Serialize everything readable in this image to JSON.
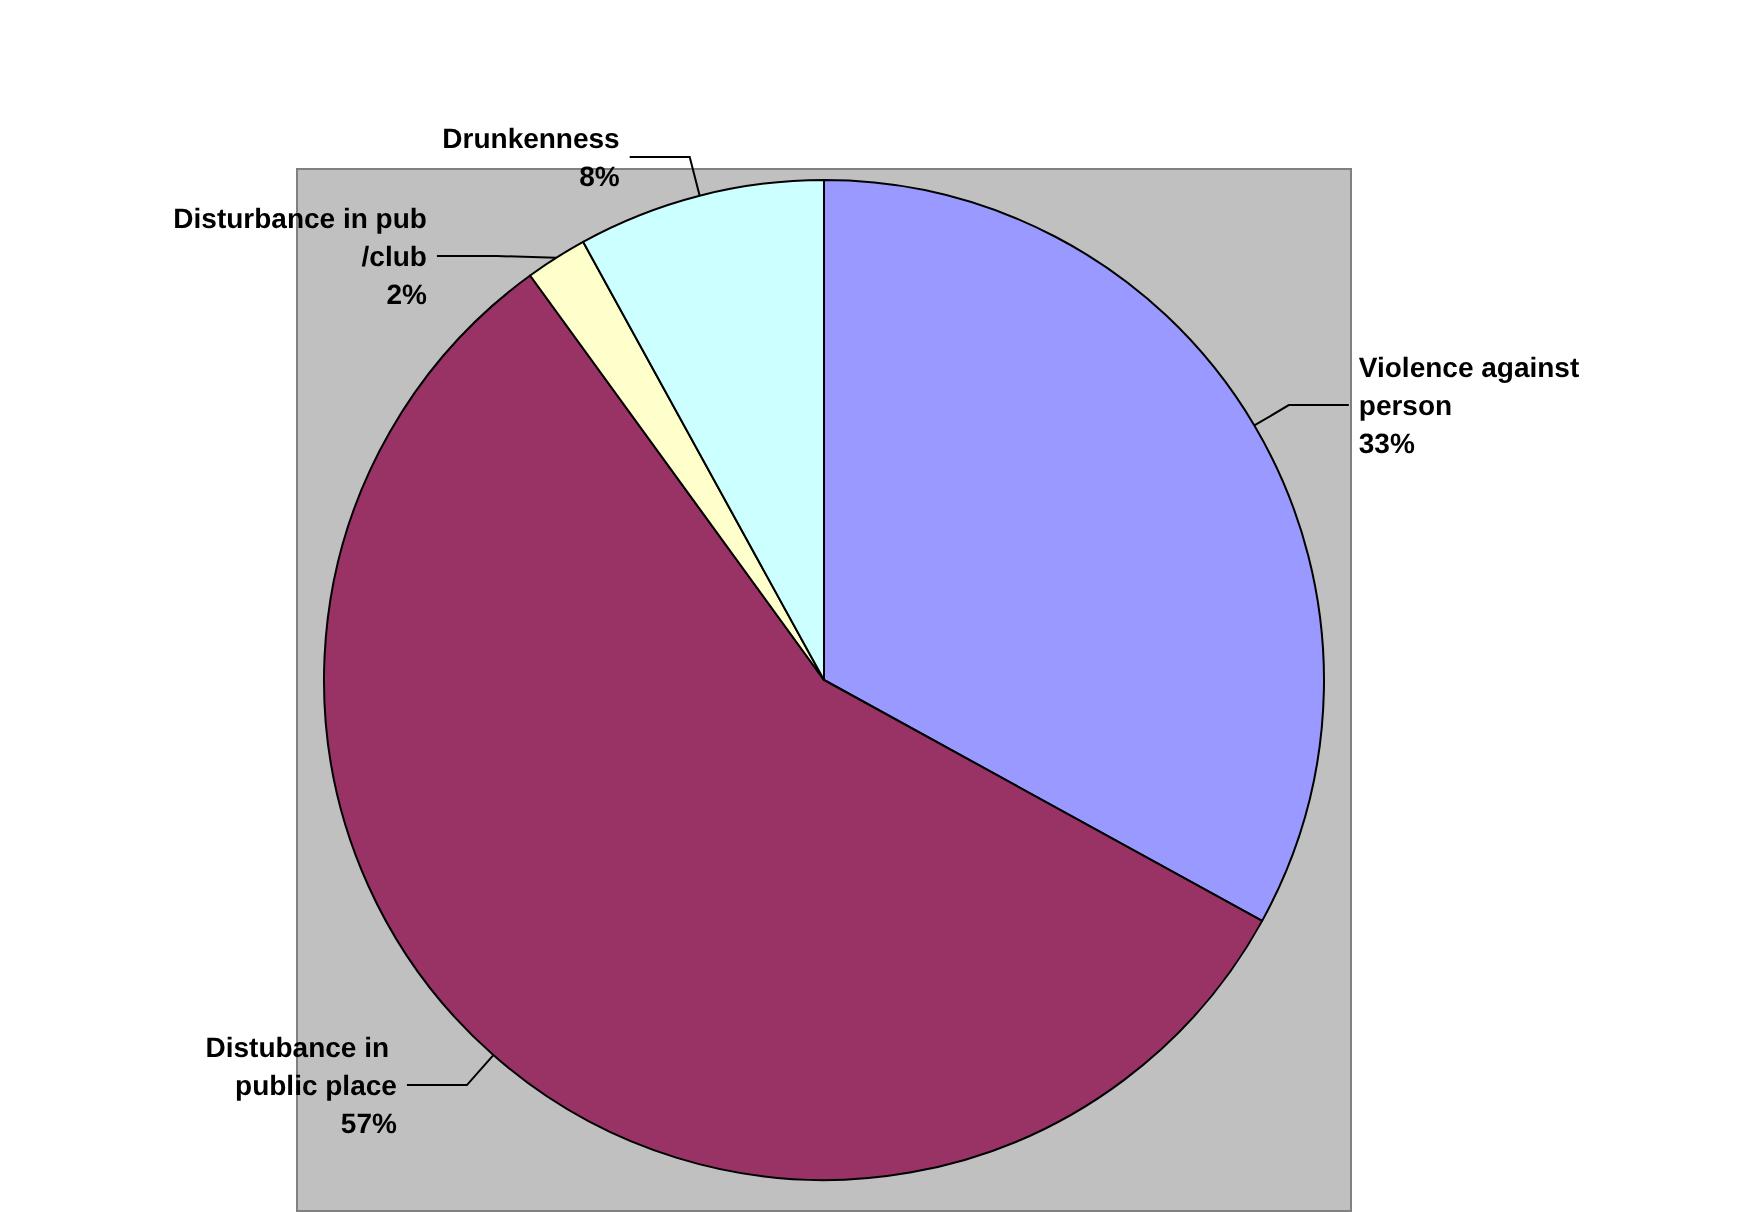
{
  "chart_data": {
    "type": "pie",
    "categories": [
      "Violence against person",
      "Distubance in public place",
      "Disturbance in pub/club",
      "Drunkenness"
    ],
    "values": [
      33,
      57,
      2,
      8
    ],
    "colors": [
      "#9999ff",
      "#993366",
      "#ffffcc",
      "#ccffff"
    ],
    "value_labels": [
      "33%",
      "57%",
      "2%",
      "8%"
    ],
    "legend": false
  }
}
